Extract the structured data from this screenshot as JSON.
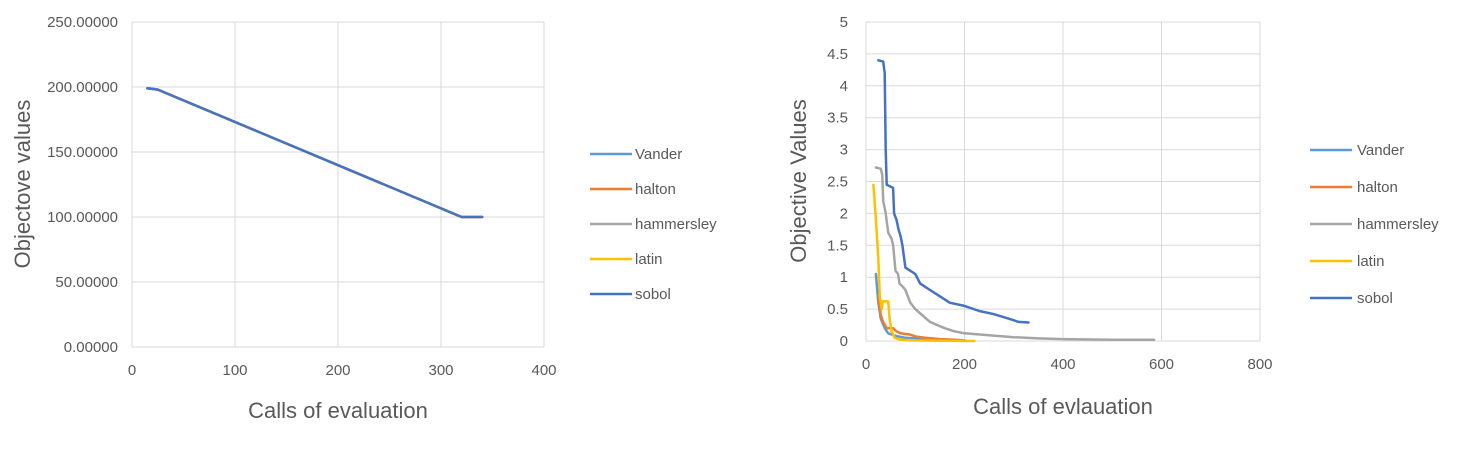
{
  "chart_data": [
    {
      "type": "line",
      "title": "",
      "xlabel": "Calls of evaluation",
      "ylabel": "Objectove values",
      "xlim": [
        0,
        400
      ],
      "ylim": [
        0,
        250
      ],
      "x_ticks": [
        "0",
        "100",
        "200",
        "300",
        "400"
      ],
      "y_ticks": [
        "0.00000",
        "50.00000",
        "100.00000",
        "150.00000",
        "200.00000",
        "250.00000"
      ],
      "grid": true,
      "legend_position": "right",
      "series": [
        {
          "name": "Vander",
          "color": "#5b9bd5",
          "points": [
            [
              15,
              199
            ],
            [
              25,
              198
            ],
            [
              320,
              100
            ],
            [
              340,
              100
            ]
          ]
        },
        {
          "name": "halton",
          "color": "#ed7d31",
          "points": [
            [
              15,
              199
            ],
            [
              25,
              198
            ],
            [
              320,
              100
            ],
            [
              340,
              100
            ]
          ]
        },
        {
          "name": "hammersley",
          "color": "#a5a5a5",
          "points": [
            [
              15,
              199
            ],
            [
              25,
              198
            ],
            [
              320,
              100
            ],
            [
              340,
              100
            ]
          ]
        },
        {
          "name": "latin",
          "color": "#ffc000",
          "points": [
            [
              15,
              199
            ],
            [
              25,
              198
            ],
            [
              320,
              100
            ],
            [
              340,
              100
            ]
          ]
        },
        {
          "name": "sobol",
          "color": "#4472c4",
          "points": [
            [
              15,
              199
            ],
            [
              25,
              198
            ],
            [
              320,
              100
            ],
            [
              340,
              100
            ]
          ]
        }
      ]
    },
    {
      "type": "line",
      "title": "",
      "xlabel": "Calls of evlauation",
      "ylabel": "Objective Values",
      "xlim": [
        0,
        800
      ],
      "ylim": [
        0,
        5
      ],
      "x_ticks": [
        "0",
        "200",
        "400",
        "600",
        "800"
      ],
      "y_ticks": [
        "0",
        "0.5",
        "1",
        "1.5",
        "2",
        "2.5",
        "3",
        "3.5",
        "4",
        "4.5",
        "5"
      ],
      "grid": true,
      "legend_position": "right",
      "series": [
        {
          "name": "Vander",
          "color": "#5b9bd5",
          "points": [
            [
              20,
              1.05
            ],
            [
              25,
              0.6
            ],
            [
              30,
              0.35
            ],
            [
              38,
              0.2
            ],
            [
              45,
              0.12
            ],
            [
              60,
              0.08
            ],
            [
              80,
              0.05
            ],
            [
              100,
              0.04
            ],
            [
              130,
              0.03
            ],
            [
              160,
              0.02
            ],
            [
              180,
              0.01
            ]
          ]
        },
        {
          "name": "halton",
          "color": "#ed7d31",
          "points": [
            [
              25,
              0.7
            ],
            [
              30,
              0.4
            ],
            [
              35,
              0.3
            ],
            [
              42,
              0.2
            ],
            [
              55,
              0.2
            ],
            [
              62,
              0.15
            ],
            [
              70,
              0.12
            ],
            [
              90,
              0.1
            ],
            [
              100,
              0.07
            ],
            [
              120,
              0.05
            ],
            [
              150,
              0.03
            ],
            [
              180,
              0.02
            ],
            [
              200,
              0.01
            ]
          ]
        },
        {
          "name": "hammersley",
          "color": "#a5a5a5",
          "points": [
            [
              20,
              2.72
            ],
            [
              30,
              2.7
            ],
            [
              33,
              2.6
            ],
            [
              35,
              2.2
            ],
            [
              40,
              2.0
            ],
            [
              45,
              1.7
            ],
            [
              52,
              1.6
            ],
            [
              55,
              1.5
            ],
            [
              60,
              1.1
            ],
            [
              65,
              1.05
            ],
            [
              68,
              0.9
            ],
            [
              75,
              0.85
            ],
            [
              80,
              0.8
            ],
            [
              90,
              0.6
            ],
            [
              100,
              0.5
            ],
            [
              115,
              0.4
            ],
            [
              130,
              0.3
            ],
            [
              145,
              0.25
            ],
            [
              160,
              0.2
            ],
            [
              180,
              0.15
            ],
            [
              200,
              0.12
            ],
            [
              250,
              0.09
            ],
            [
              300,
              0.06
            ],
            [
              350,
              0.04
            ],
            [
              400,
              0.03
            ],
            [
              500,
              0.02
            ],
            [
              585,
              0.02
            ]
          ]
        },
        {
          "name": "latin",
          "color": "#ffc000",
          "points": [
            [
              15,
              2.45
            ],
            [
              20,
              1.9
            ],
            [
              25,
              1.3
            ],
            [
              28,
              0.7
            ],
            [
              32,
              0.5
            ],
            [
              34,
              0.62
            ],
            [
              45,
              0.62
            ],
            [
              48,
              0.35
            ],
            [
              52,
              0.15
            ],
            [
              58,
              0.05
            ],
            [
              70,
              0.02
            ],
            [
              100,
              0.01
            ],
            [
              150,
              0.005
            ],
            [
              220,
              0.0
            ]
          ]
        },
        {
          "name": "sobol",
          "color": "#4472c4",
          "points": [
            [
              25,
              4.4
            ],
            [
              35,
              4.38
            ],
            [
              38,
              4.2
            ],
            [
              40,
              3.0
            ],
            [
              42,
              2.45
            ],
            [
              55,
              2.4
            ],
            [
              57,
              2.0
            ],
            [
              62,
              1.9
            ],
            [
              66,
              1.75
            ],
            [
              70,
              1.65
            ],
            [
              74,
              1.5
            ],
            [
              80,
              1.15
            ],
            [
              100,
              1.05
            ],
            [
              110,
              0.9
            ],
            [
              130,
              0.8
            ],
            [
              150,
              0.7
            ],
            [
              170,
              0.6
            ],
            [
              200,
              0.55
            ],
            [
              230,
              0.47
            ],
            [
              260,
              0.42
            ],
            [
              290,
              0.35
            ],
            [
              310,
              0.3
            ],
            [
              330,
              0.29
            ]
          ]
        }
      ]
    }
  ]
}
